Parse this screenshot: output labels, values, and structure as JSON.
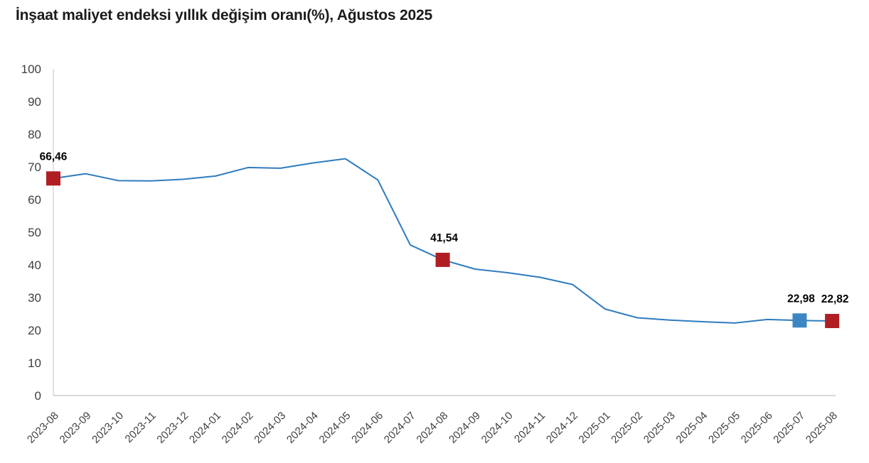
{
  "title": "İnşaat maliyet endeksi yıllık değişim oranı(%), Ağustos 2025",
  "chart_data": {
    "type": "line",
    "title": "İnşaat maliyet endeksi yıllık değişim oranı(%), Ağustos 2025",
    "xlabel": "",
    "ylabel": "",
    "ylim": [
      0,
      100
    ],
    "ytick_step": 10,
    "grid": false,
    "legend_position": "none",
    "xtick_rotation": -45,
    "x": [
      "2023-08",
      "2023-09",
      "2023-10",
      "2023-11",
      "2023-12",
      "2024-01",
      "2024-02",
      "2024-03",
      "2024-04",
      "2024-05",
      "2024-06",
      "2024-07",
      "2024-08",
      "2024-09",
      "2024-10",
      "2024-11",
      "2024-12",
      "2025-01",
      "2025-02",
      "2025-03",
      "2025-04",
      "2025-05",
      "2025-06",
      "2025-07",
      "2025-08"
    ],
    "series": [
      {
        "values": [
          66.46,
          67.9,
          65.8,
          65.7,
          66.2,
          67.2,
          69.8,
          69.6,
          71.2,
          72.5,
          66.0,
          46.1,
          41.54,
          38.7,
          37.6,
          36.2,
          34.0,
          26.5,
          23.8,
          23.1,
          22.6,
          22.2,
          23.3,
          22.98,
          22.82
        ]
      }
    ],
    "annotations": [
      {
        "x": "2023-08",
        "label": "66,46",
        "marker": "red",
        "label_dx": 0
      },
      {
        "x": "2024-08",
        "label": "41,54",
        "marker": "red",
        "label_dx": 2
      },
      {
        "x": "2025-07",
        "label": "22,98",
        "marker": "blue",
        "label_dx": 2
      },
      {
        "x": "2025-08",
        "label": "22,82",
        "marker": "red",
        "label_dx": 4
      }
    ],
    "colors": {
      "line": "#2f7cbe",
      "marker_red": "#b01e24",
      "marker_blue": "#3c86c3",
      "axis_line": "#d9d9d9",
      "tick_text": "#404040",
      "data_label_text": "#000000",
      "title_text": "#1b1b1b",
      "background": "#ffffff"
    }
  }
}
